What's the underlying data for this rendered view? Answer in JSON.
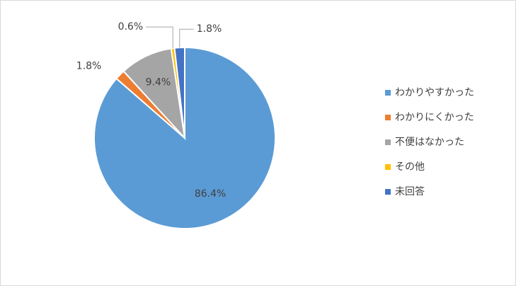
{
  "chart_data": {
    "type": "pie",
    "categories": [
      "わかりやすかった",
      "わかりにくかった",
      "不便はなかった",
      "その他",
      "未回答"
    ],
    "values": [
      86.4,
      1.8,
      9.4,
      0.6,
      1.8
    ],
    "value_labels": [
      "86.4%",
      "1.8%",
      "9.4%",
      "0.6%",
      "1.8%"
    ],
    "colors": [
      "#5b9bd5",
      "#ed7d31",
      "#a5a5a5",
      "#ffc000",
      "#4472c4"
    ],
    "legend": "right"
  }
}
